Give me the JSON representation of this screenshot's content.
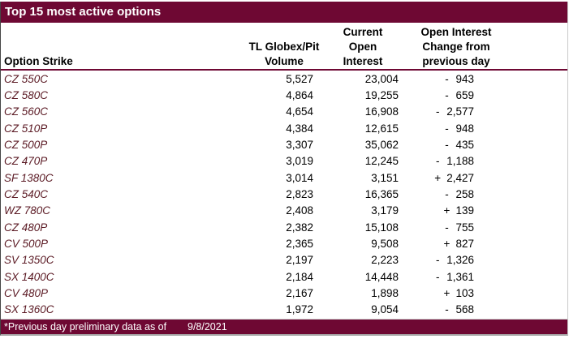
{
  "title": "Top 15 most active options",
  "columns": {
    "strike": "Option Strike",
    "volume_lines": [
      "TL Globex/Pit",
      "Volume"
    ],
    "open_interest_lines": [
      "Current",
      "Open",
      "Interest"
    ],
    "change_lines": [
      "Open Interest",
      "Change from",
      "previous day"
    ]
  },
  "rows": [
    {
      "strike": "CZ 550C",
      "volume": "5,527",
      "open_interest": "23,004",
      "change_sign": "-",
      "change_value": "943"
    },
    {
      "strike": "CZ 580C",
      "volume": "4,864",
      "open_interest": "19,255",
      "change_sign": "-",
      "change_value": "659"
    },
    {
      "strike": "CZ 560C",
      "volume": "4,654",
      "open_interest": "16,908",
      "change_sign": "-",
      "change_value": "2,577"
    },
    {
      "strike": "CZ 510P",
      "volume": "4,384",
      "open_interest": "12,615",
      "change_sign": "-",
      "change_value": "948"
    },
    {
      "strike": "CZ 500P",
      "volume": "3,307",
      "open_interest": "35,062",
      "change_sign": "-",
      "change_value": "435"
    },
    {
      "strike": "CZ 470P",
      "volume": "3,019",
      "open_interest": "12,245",
      "change_sign": "-",
      "change_value": "1,188"
    },
    {
      "strike": "SF 1380C",
      "volume": "3,014",
      "open_interest": "3,151",
      "change_sign": "+",
      "change_value": "2,427"
    },
    {
      "strike": "CZ 540C",
      "volume": "2,823",
      "open_interest": "16,365",
      "change_sign": "-",
      "change_value": "258"
    },
    {
      "strike": "WZ 780C",
      "volume": "2,408",
      "open_interest": "3,179",
      "change_sign": "+",
      "change_value": "139"
    },
    {
      "strike": "CZ 480P",
      "volume": "2,382",
      "open_interest": "15,108",
      "change_sign": "-",
      "change_value": "755"
    },
    {
      "strike": "CV 500P",
      "volume": "2,365",
      "open_interest": "9,508",
      "change_sign": "+",
      "change_value": "827"
    },
    {
      "strike": "SV 1350C",
      "volume": "2,197",
      "open_interest": "2,223",
      "change_sign": "-",
      "change_value": "1,326"
    },
    {
      "strike": "SX 1400C",
      "volume": "2,184",
      "open_interest": "14,448",
      "change_sign": "-",
      "change_value": "1,361"
    },
    {
      "strike": "CV 480P",
      "volume": "2,167",
      "open_interest": "1,898",
      "change_sign": "+",
      "change_value": "103"
    },
    {
      "strike": "SX 1360C",
      "volume": "1,972",
      "open_interest": "9,054",
      "change_sign": "-",
      "change_value": "568"
    }
  ],
  "footer": {
    "note": "*Previous day preliminary data as of",
    "date": "9/8/2021"
  },
  "colors": {
    "band_maroon": "#6E0833",
    "strike_text": "#5B1A24",
    "data_text": "#000000",
    "band_text": "#FFFFFF"
  }
}
